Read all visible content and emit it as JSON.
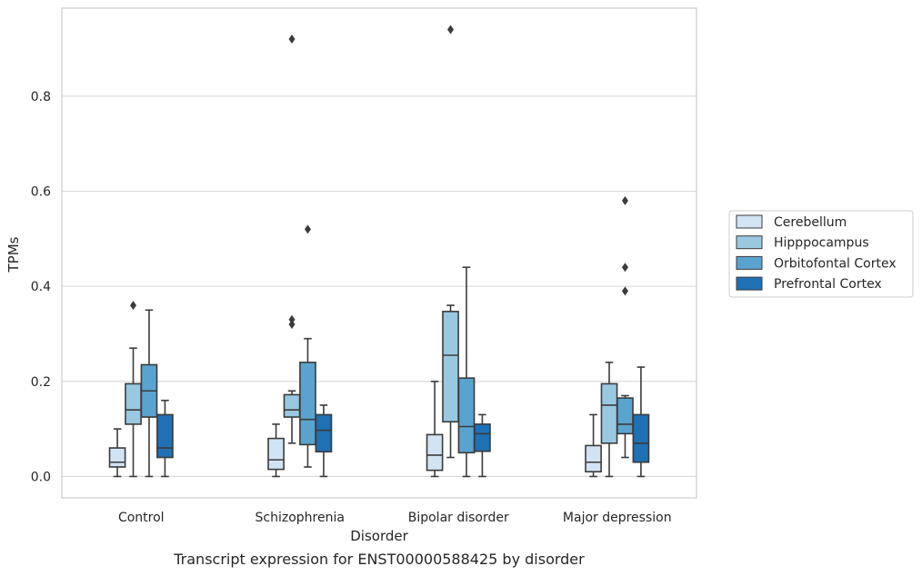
{
  "caption": "Transcript expression for ENST00000588425 by disorder",
  "chart_data": {
    "type": "box",
    "xlabel": "Disorder",
    "ylabel": "TPMs",
    "ylim": [
      -0.045,
      0.985
    ],
    "yticks": [
      0.0,
      0.2,
      0.4,
      0.6,
      0.8
    ],
    "ytick_labels": [
      "0.0",
      "0.2",
      "0.4",
      "0.6",
      "0.8"
    ],
    "grid": "horizontal",
    "legend_position": "right",
    "categories": [
      "Control",
      "Schizophrenia",
      "Bipolar disorder",
      "Major depression"
    ],
    "series": [
      {
        "name": "Cerebellum",
        "color": "#d2e3f3",
        "boxes": [
          {
            "whislo": 0.0,
            "q1": 0.02,
            "med": 0.03,
            "q3": 0.06,
            "whishi": 0.1,
            "fliers": []
          },
          {
            "whislo": 0.0,
            "q1": 0.015,
            "med": 0.035,
            "q3": 0.08,
            "whishi": 0.11,
            "fliers": []
          },
          {
            "whislo": 0.0,
            "q1": 0.013,
            "med": 0.045,
            "q3": 0.088,
            "whishi": 0.2,
            "fliers": []
          },
          {
            "whislo": 0.0,
            "q1": 0.01,
            "med": 0.03,
            "q3": 0.065,
            "whishi": 0.13,
            "fliers": []
          }
        ]
      },
      {
        "name": "Hipppocampus",
        "color": "#9ac8e0",
        "boxes": [
          {
            "whislo": 0.0,
            "q1": 0.11,
            "med": 0.14,
            "q3": 0.195,
            "whishi": 0.27,
            "fliers": [
              0.36
            ]
          },
          {
            "whislo": 0.07,
            "q1": 0.125,
            "med": 0.14,
            "q3": 0.172,
            "whishi": 0.18,
            "fliers": [
              0.32,
              0.33,
              0.92
            ]
          },
          {
            "whislo": 0.04,
            "q1": 0.115,
            "med": 0.255,
            "q3": 0.347,
            "whishi": 0.36,
            "fliers": [
              0.94
            ]
          },
          {
            "whislo": 0.0,
            "q1": 0.07,
            "med": 0.15,
            "q3": 0.195,
            "whishi": 0.24,
            "fliers": []
          }
        ]
      },
      {
        "name": "Orbitofontal Cortex",
        "color": "#5ba3cf",
        "boxes": [
          {
            "whislo": 0.0,
            "q1": 0.125,
            "med": 0.18,
            "q3": 0.235,
            "whishi": 0.35,
            "fliers": []
          },
          {
            "whislo": 0.02,
            "q1": 0.067,
            "med": 0.12,
            "q3": 0.24,
            "whishi": 0.29,
            "fliers": [
              0.52
            ]
          },
          {
            "whislo": 0.0,
            "q1": 0.05,
            "med": 0.105,
            "q3": 0.207,
            "whishi": 0.44,
            "fliers": []
          },
          {
            "whislo": 0.04,
            "q1": 0.09,
            "med": 0.11,
            "q3": 0.165,
            "whishi": 0.17,
            "fliers": [
              0.39,
              0.44,
              0.58
            ]
          }
        ]
      },
      {
        "name": "Prefrontal Cortex",
        "color": "#2070b4",
        "boxes": [
          {
            "whislo": 0.0,
            "q1": 0.04,
            "med": 0.06,
            "q3": 0.13,
            "whishi": 0.16,
            "fliers": []
          },
          {
            "whislo": 0.0,
            "q1": 0.052,
            "med": 0.097,
            "q3": 0.13,
            "whishi": 0.15,
            "fliers": []
          },
          {
            "whislo": 0.0,
            "q1": 0.053,
            "med": 0.09,
            "q3": 0.11,
            "whishi": 0.13,
            "fliers": []
          },
          {
            "whislo": 0.0,
            "q1": 0.03,
            "med": 0.07,
            "q3": 0.13,
            "whishi": 0.23,
            "fliers": []
          }
        ]
      }
    ]
  }
}
